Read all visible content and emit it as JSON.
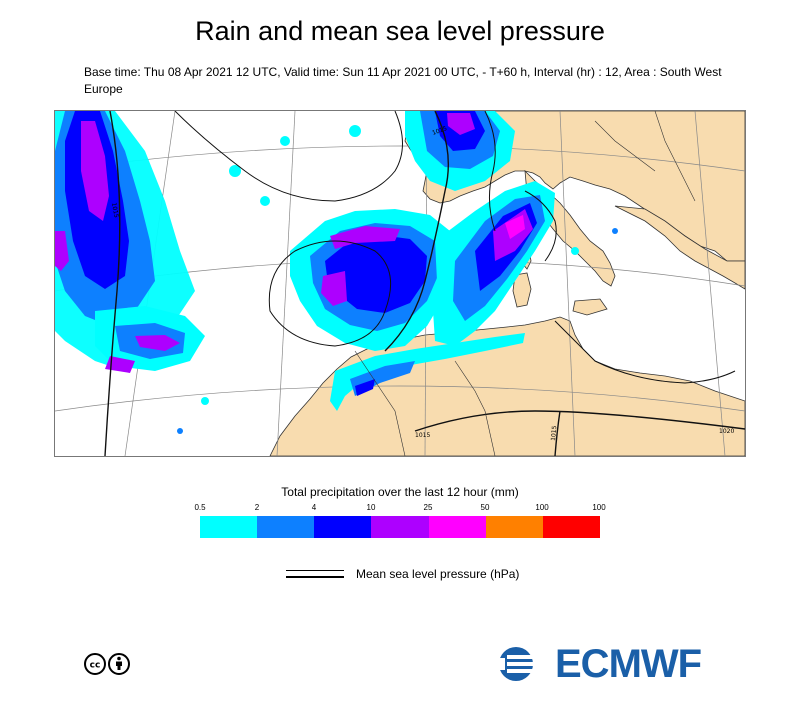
{
  "header": {
    "title": "Rain and mean sea level pressure",
    "subtitle": "Base time: Thu 08 Apr 2021 12 UTC, Valid time: Sun 11 Apr 2021 00 UTC, - T+60 h, Interval (hr) : 12, Area : South West Europe"
  },
  "map": {
    "isobar_labels": [
      "1015",
      "1015",
      "1020",
      "1015",
      "1015"
    ],
    "colors": {
      "sea": "#ffffff",
      "land": "#f8dcaf",
      "coastline": "#333333",
      "isobar": "#111111",
      "graticule": "#888888"
    }
  },
  "precip_legend": {
    "title": "Total precipitation over the last 12 hour (mm)",
    "ticks": [
      "0.5",
      "2",
      "4",
      "10",
      "25",
      "50",
      "100",
      "100"
    ],
    "colors": [
      "#00ffff",
      "#0d80ff",
      "#0000ff",
      "#ad00ff",
      "#ff00ff",
      "#ff8000",
      "#ff0000"
    ]
  },
  "pressure_legend": {
    "label": "Mean sea level pressure (hPa)"
  },
  "footer": {
    "license_icon": "cc-by-icon",
    "brand": "ECMWF",
    "brand_color": "#1a5fa8"
  }
}
